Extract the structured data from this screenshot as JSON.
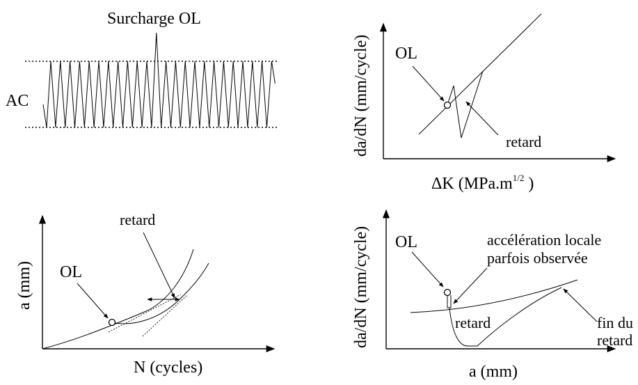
{
  "panels": {
    "loading": {
      "overload_label": "Surcharge OL",
      "amplitude_label": "AC"
    },
    "rate_vs_deltaK": {
      "ylabel": "da/dN (mm/cycle)",
      "xlabel_main": "ΔK (MPa.m",
      "xlabel_exp": "1/2",
      "xlabel_close": " )",
      "ol_label": "OL",
      "retard_label": "retard"
    },
    "length_vs_cycles": {
      "ylabel": "a (mm)",
      "xlabel": "N (cycles)",
      "ol_label": "OL",
      "retard_label": "retard"
    },
    "rate_vs_length": {
      "ylabel": "da/dN (mm/cycle)",
      "xlabel": "a (mm)",
      "ol_label": "OL",
      "accel_line1": "accélération locale",
      "accel_line2": "parfois observée",
      "retard_label": "retard",
      "end_line1": "fin du",
      "end_line2": "retard"
    }
  }
}
